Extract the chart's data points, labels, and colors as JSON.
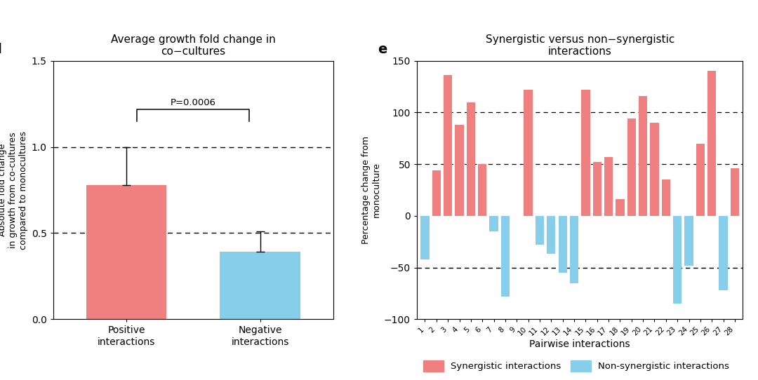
{
  "panel_d": {
    "title": "Average growth fold change in\nco−cultures",
    "ylabel": "Absolute fold change\nin growth from co-cultures\ncompared to monocultures",
    "categories": [
      "Positive\ninteractions",
      "Negative\ninteractions"
    ],
    "values": [
      0.78,
      0.39
    ],
    "errors": [
      0.22,
      0.12
    ],
    "bar_colors": [
      "#F08080",
      "#87CEEB"
    ],
    "ylim": [
      0,
      1.5
    ],
    "yticks": [
      0.0,
      0.5,
      1.0,
      1.5
    ],
    "hlines": [
      1.0,
      0.5
    ],
    "pvalue_text": "P=0.0006",
    "label": "d"
  },
  "panel_e": {
    "title": "Synergistic versus non−synergistic\ninteractions",
    "ylabel": "Percentage change from\nmonoculture",
    "xlabel": "Pairwise interactions",
    "label": "e",
    "ylim": [
      -100,
      150
    ],
    "yticks": [
      -100,
      -50,
      0,
      50,
      100,
      150
    ],
    "hlines": [
      -50,
      50,
      100
    ],
    "synergistic_color": "#F08080",
    "non_synergistic_color": "#87CEEB",
    "bar_positions": [
      1,
      2,
      3,
      4,
      5,
      6,
      7,
      8,
      9,
      10,
      11,
      12,
      13,
      14,
      15,
      16,
      17,
      18,
      19,
      20,
      21,
      22,
      23,
      24,
      25,
      26,
      27,
      28
    ],
    "synergistic_values": [
      null,
      44,
      136,
      88,
      110,
      50,
      null,
      null,
      null,
      122,
      null,
      null,
      null,
      null,
      122,
      52,
      57,
      16,
      94,
      116,
      90,
      35,
      null,
      null,
      70,
      140,
      null,
      46
    ],
    "non_synergistic_values": [
      -42,
      null,
      null,
      null,
      null,
      null,
      -15,
      -78,
      null,
      null,
      -28,
      -37,
      -55,
      -65,
      null,
      null,
      null,
      null,
      null,
      null,
      null,
      null,
      -85,
      -48,
      null,
      null,
      -72,
      null
    ],
    "legend_synergistic": "Synergistic interactions",
    "legend_non_synergistic": "Non-synergistic interactions"
  }
}
